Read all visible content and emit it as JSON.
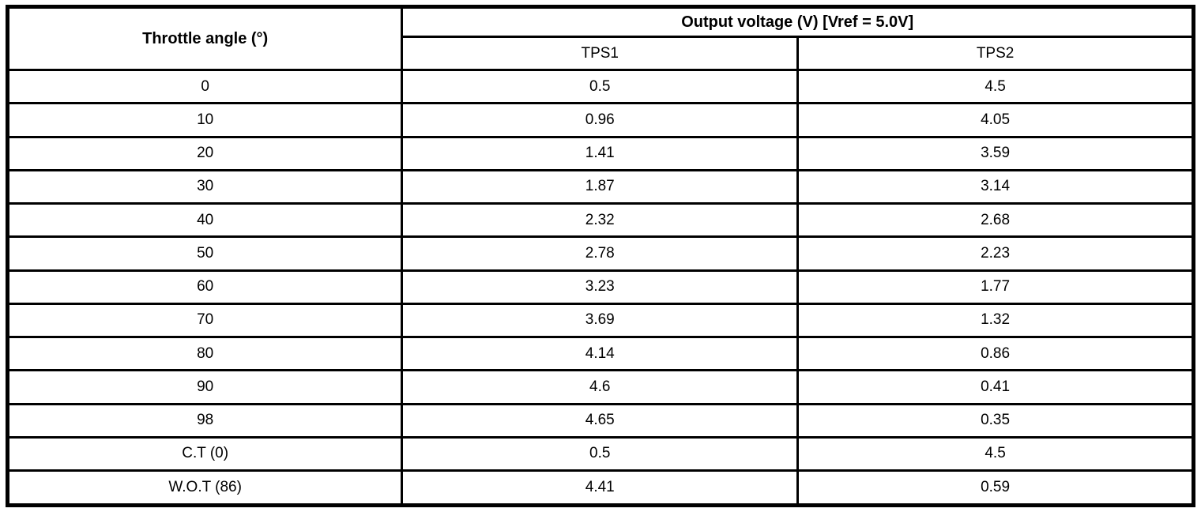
{
  "table": {
    "header": {
      "angle_label": "Throttle angle (°)",
      "output_label": "Output voltage (V) [Vref = 5.0V]",
      "tps1_label": "TPS1",
      "tps2_label": "TPS2"
    },
    "rows": [
      {
        "angle": "0",
        "tps1": "0.5",
        "tps2": "4.5"
      },
      {
        "angle": "10",
        "tps1": "0.96",
        "tps2": "4.05"
      },
      {
        "angle": "20",
        "tps1": "1.41",
        "tps2": "3.59"
      },
      {
        "angle": "30",
        "tps1": "1.87",
        "tps2": "3.14"
      },
      {
        "angle": "40",
        "tps1": "2.32",
        "tps2": "2.68"
      },
      {
        "angle": "50",
        "tps1": "2.78",
        "tps2": "2.23"
      },
      {
        "angle": "60",
        "tps1": "3.23",
        "tps2": "1.77"
      },
      {
        "angle": "70",
        "tps1": "3.69",
        "tps2": "1.32"
      },
      {
        "angle": "80",
        "tps1": "4.14",
        "tps2": "0.86"
      },
      {
        "angle": "90",
        "tps1": "4.6",
        "tps2": "0.41"
      },
      {
        "angle": "98",
        "tps1": "4.65",
        "tps2": "0.35"
      },
      {
        "angle": "C.T (0)",
        "tps1": "0.5",
        "tps2": "4.5"
      },
      {
        "angle": "W.O.T (86)",
        "tps1": "4.41",
        "tps2": "0.59"
      }
    ]
  },
  "chart_data": {
    "type": "table",
    "title": "Output voltage (V) [Vref = 5.0V]",
    "columns": [
      "Throttle angle (°)",
      "TPS1",
      "TPS2"
    ],
    "categories": [
      "0",
      "10",
      "20",
      "30",
      "40",
      "50",
      "60",
      "70",
      "80",
      "90",
      "98",
      "C.T (0)",
      "W.O.T (86)"
    ],
    "series": [
      {
        "name": "TPS1",
        "values": [
          0.5,
          0.96,
          1.41,
          1.87,
          2.32,
          2.78,
          3.23,
          3.69,
          4.14,
          4.6,
          4.65,
          0.5,
          4.41
        ]
      },
      {
        "name": "TPS2",
        "values": [
          4.5,
          4.05,
          3.59,
          3.14,
          2.68,
          2.23,
          1.77,
          1.32,
          0.86,
          0.41,
          0.35,
          4.5,
          0.59
        ]
      }
    ]
  }
}
